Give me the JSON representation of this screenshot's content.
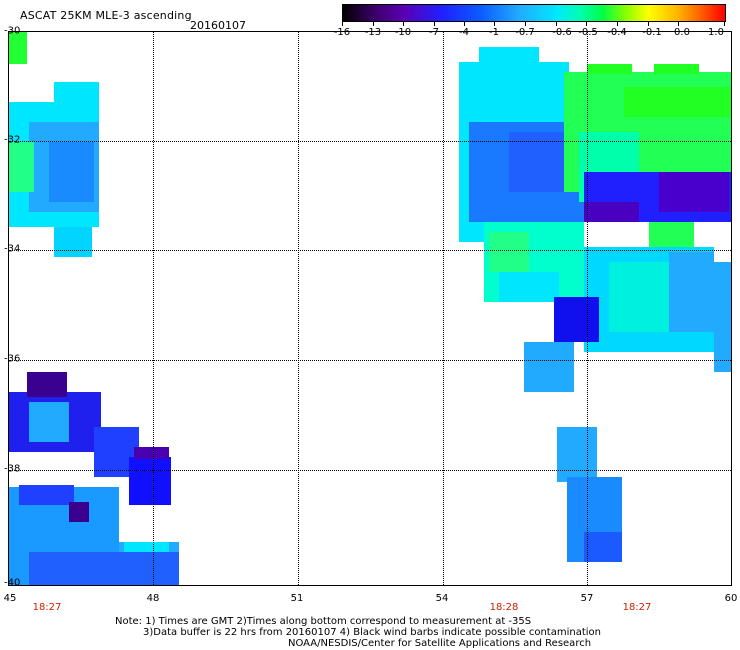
{
  "header": {
    "title": "ASCAT 25KM MLE-3 ascending",
    "date": "20160107"
  },
  "colorbar": {
    "ticks": [
      "-16",
      "-13",
      "-10",
      "-7",
      "-4",
      "-1",
      "-0.7",
      "-0.6",
      "-0.5",
      "-0.4",
      "-0.1",
      "0.0",
      "1.0"
    ]
  },
  "map": {
    "lat_labels": [
      "-30",
      "-32",
      "-34",
      "-36",
      "-38",
      "-40"
    ],
    "lon_labels": [
      "45",
      "48",
      "51",
      "54",
      "57",
      "60"
    ],
    "times": [
      "18:27",
      "18:28",
      "18:27"
    ]
  },
  "notes": {
    "line1": "Note: 1) Times are GMT 2)Times along bottom correspond to measurement at -35S",
    "line2": "3)Data buffer is 22 hrs from 20160107 4) Black wind barbs indicate possible contamination",
    "line3": "NOAA/NESDIS/Center for Satellite Applications and Research"
  }
}
